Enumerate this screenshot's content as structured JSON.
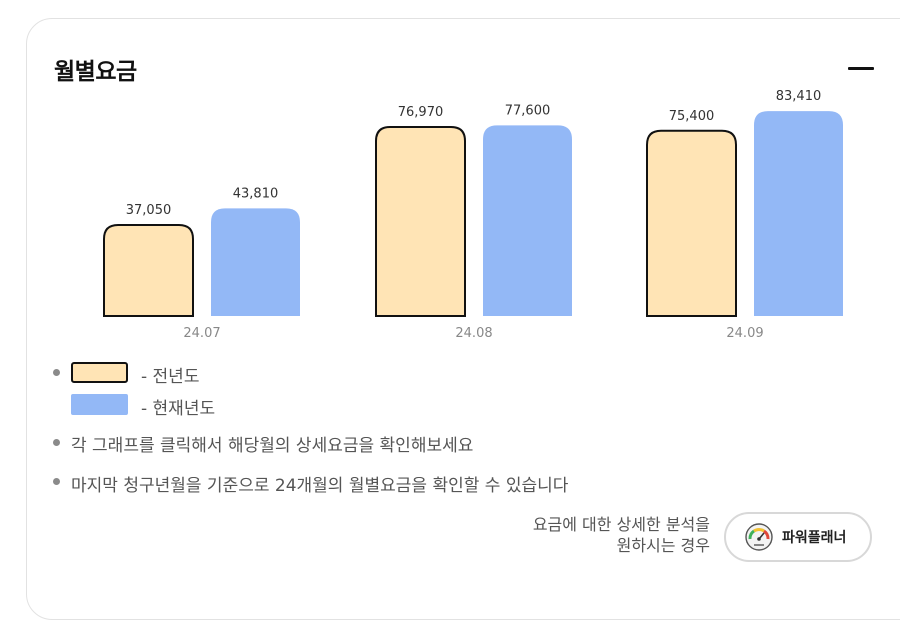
{
  "header": {
    "title": "월별요금"
  },
  "chart_data": {
    "type": "bar",
    "categories": [
      "24.07",
      "24.08",
      "24.09"
    ],
    "series": [
      {
        "name": "전년도",
        "values": [
          37050,
          76970,
          75400
        ],
        "color": "#ffe4b5",
        "outline": "#111111"
      },
      {
        "name": "현재년도",
        "values": [
          43810,
          77600,
          83410
        ],
        "color": "#93b8f6"
      }
    ],
    "value_labels": [
      [
        "37,050",
        "76,970",
        "75,400"
      ],
      [
        "43,810",
        "77,600",
        "83,410"
      ]
    ],
    "ylim": [
      0,
      100000
    ],
    "grid": false,
    "legend": "bottom-left"
  },
  "legend": {
    "prev_label": "- 전년도",
    "curr_label": "- 현재년도"
  },
  "notes": [
    "각 그래프를 클릭해서 해당월의 상세요금을 확인해보세요",
    "마지막 청구년월을 기준으로 24개월의 월별요금을 확인할 수 있습니다"
  ],
  "planner": {
    "prompt_line1": "요금에 대한 상세한 분석을",
    "prompt_line2": "원하시는 경우",
    "button_label": "파워플래너",
    "icon": "gauge-icon"
  }
}
